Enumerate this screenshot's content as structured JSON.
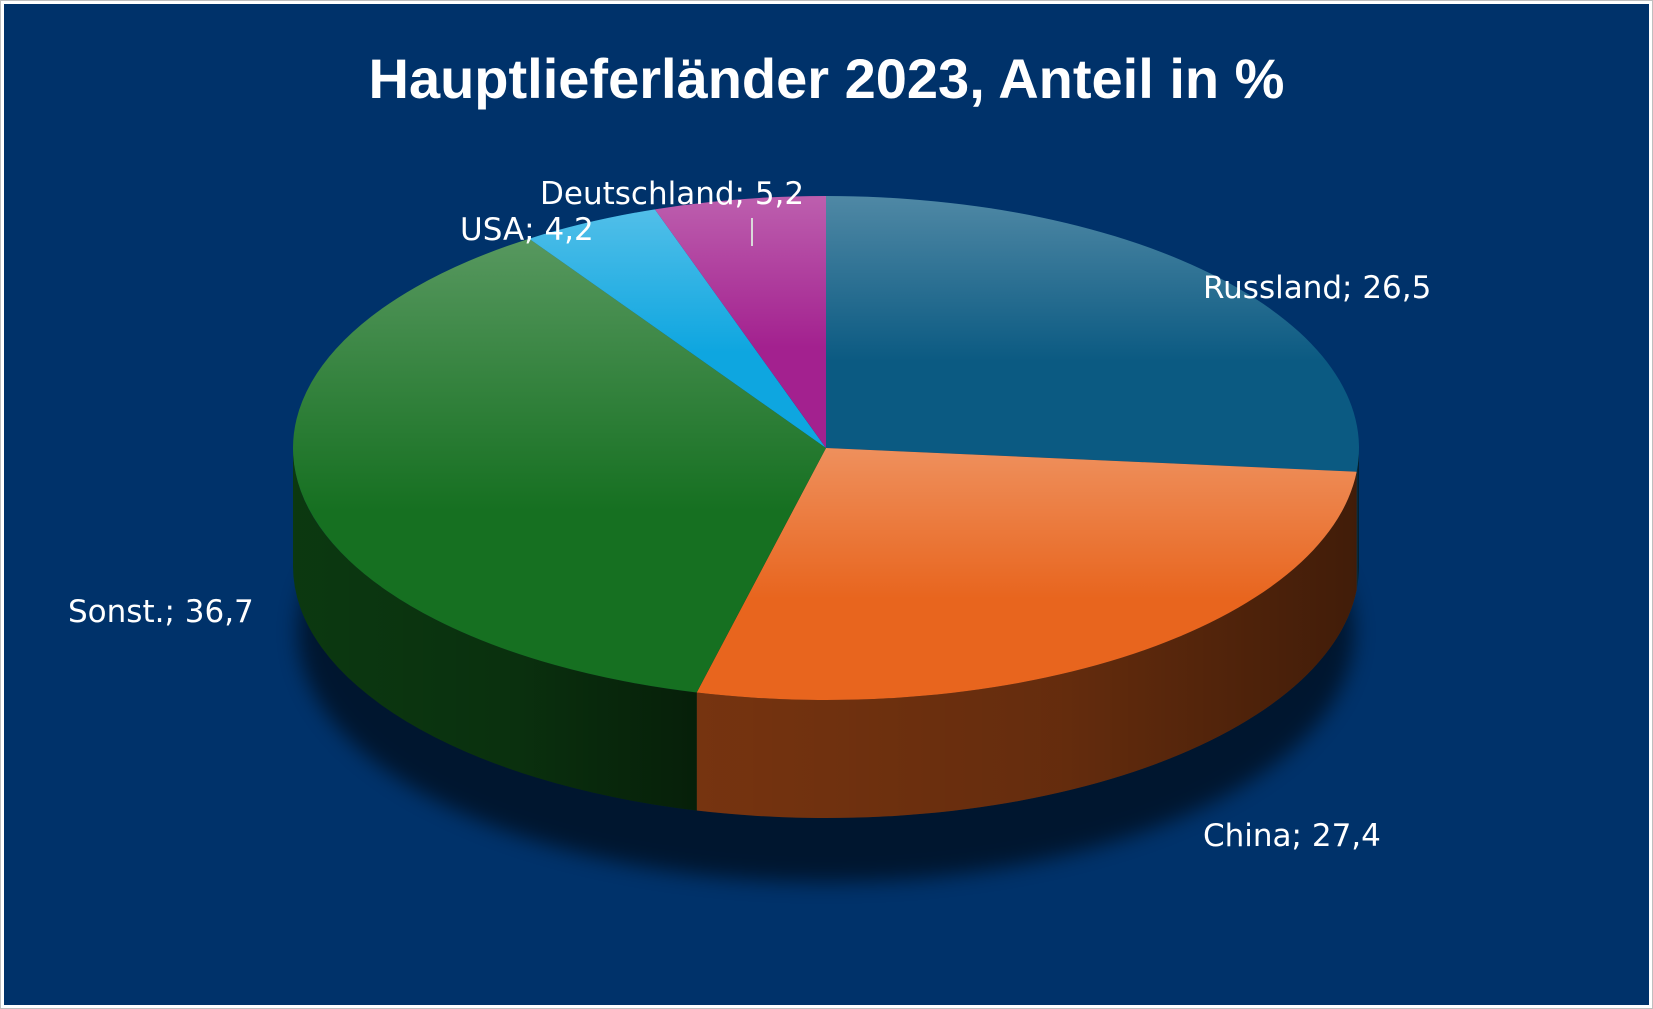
{
  "chart_data": {
    "type": "pie",
    "title": "Hauptlieferländer 2023, Anteil in %",
    "categories": [
      "Russland",
      "China",
      "Sonst.",
      "USA",
      "Deutschland"
    ],
    "values": [
      26.5,
      27.4,
      36.7,
      4.2,
      5.2
    ],
    "labels": [
      "Russland; 26,5",
      "China; 27,4",
      "Sonst.; 36,7",
      "USA; 4,2",
      "Deutschland; 5,2"
    ],
    "colors": [
      "#0b5a82",
      "#e8651e",
      "#167021",
      "#0ea6e0",
      "#a3218f"
    ],
    "style": "3d",
    "legend": "none"
  },
  "background_color": "#00326a"
}
